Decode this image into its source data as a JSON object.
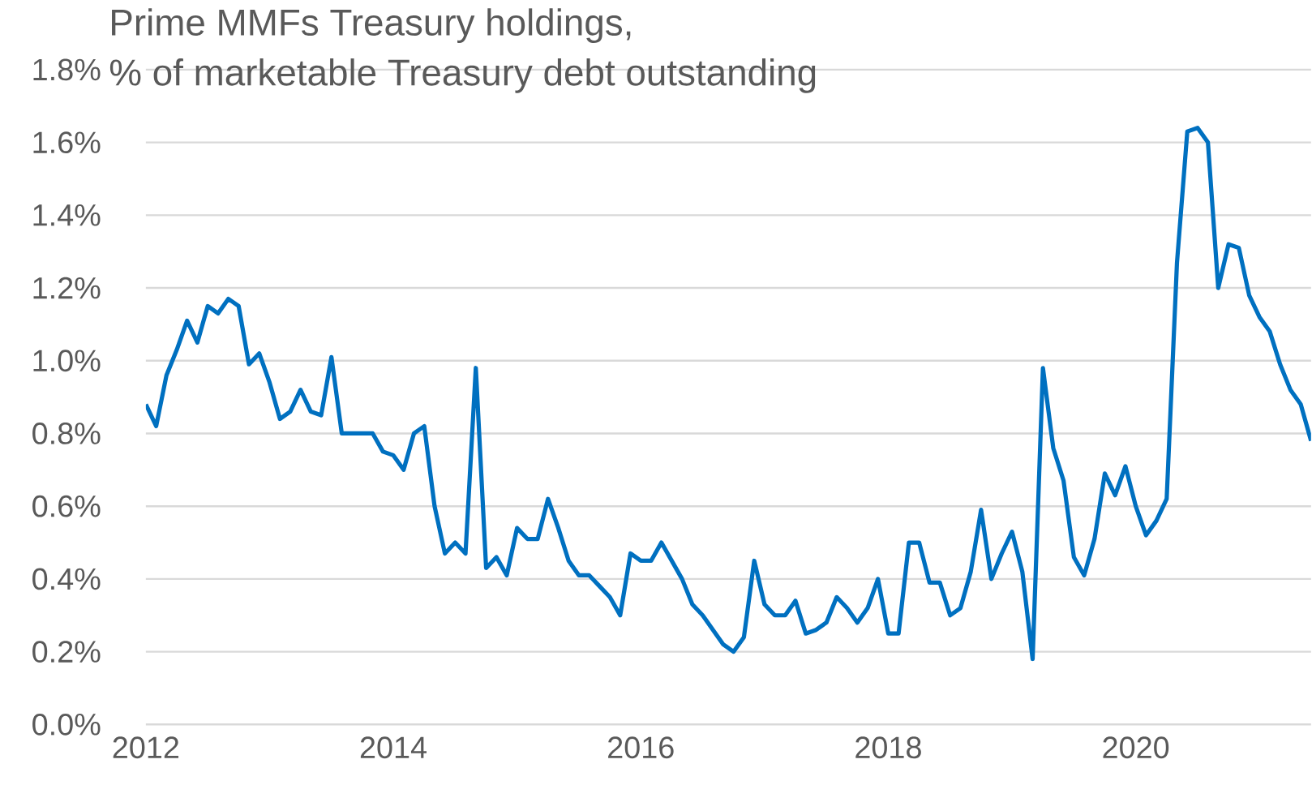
{
  "chart_data": {
    "type": "line",
    "title": "Prime MMFs Treasury holdings,",
    "subtitle": "% of marketable Treasury debt outstanding",
    "x": [
      "2012-01",
      "2012-02",
      "2012-03",
      "2012-04",
      "2012-05",
      "2012-06",
      "2012-07",
      "2012-08",
      "2012-09",
      "2012-10",
      "2012-11",
      "2012-12",
      "2013-01",
      "2013-02",
      "2013-03",
      "2013-04",
      "2013-05",
      "2013-06",
      "2013-07",
      "2013-08",
      "2013-09",
      "2013-10",
      "2013-11",
      "2013-12",
      "2014-01",
      "2014-02",
      "2014-03",
      "2014-04",
      "2014-05",
      "2014-06",
      "2014-07",
      "2014-08",
      "2014-09",
      "2014-10",
      "2014-11",
      "2014-12",
      "2015-01",
      "2015-02",
      "2015-03",
      "2015-04",
      "2015-05",
      "2015-06",
      "2015-07",
      "2015-08",
      "2015-09",
      "2015-10",
      "2015-11",
      "2015-12",
      "2016-01",
      "2016-02",
      "2016-03",
      "2016-04",
      "2016-05",
      "2016-06",
      "2016-07",
      "2016-08",
      "2016-09",
      "2016-10",
      "2016-11",
      "2016-12",
      "2017-01",
      "2017-02",
      "2017-03",
      "2017-04",
      "2017-05",
      "2017-06",
      "2017-07",
      "2017-08",
      "2017-09",
      "2017-10",
      "2017-11",
      "2017-12",
      "2018-01",
      "2018-02",
      "2018-03",
      "2018-04",
      "2018-05",
      "2018-06",
      "2018-07",
      "2018-08",
      "2018-09",
      "2018-10",
      "2018-11",
      "2018-12",
      "2019-01",
      "2019-02",
      "2019-03",
      "2019-04",
      "2019-05",
      "2019-06",
      "2019-07",
      "2019-08",
      "2019-09",
      "2019-10",
      "2019-11",
      "2019-12",
      "2020-01",
      "2020-02",
      "2020-03",
      "2020-04",
      "2020-05",
      "2020-06",
      "2020-07",
      "2020-08",
      "2020-09",
      "2020-10",
      "2020-11",
      "2020-12",
      "2021-01",
      "2021-02",
      "2021-03",
      "2021-04",
      "2021-05",
      "2021-06"
    ],
    "series": [
      {
        "color": "#0070c0",
        "values": [
          0.88,
          0.82,
          0.96,
          1.03,
          1.11,
          1.05,
          1.15,
          1.13,
          1.17,
          1.15,
          0.99,
          1.02,
          0.94,
          0.84,
          0.86,
          0.92,
          0.86,
          0.85,
          1.01,
          0.8,
          0.8,
          0.8,
          0.8,
          0.75,
          0.74,
          0.7,
          0.8,
          0.82,
          0.6,
          0.47,
          0.5,
          0.47,
          0.98,
          0.43,
          0.46,
          0.41,
          0.54,
          0.51,
          0.51,
          0.62,
          0.54,
          0.45,
          0.41,
          0.41,
          0.38,
          0.35,
          0.3,
          0.47,
          0.45,
          0.45,
          0.5,
          0.45,
          0.4,
          0.33,
          0.3,
          0.26,
          0.22,
          0.2,
          0.24,
          0.45,
          0.33,
          0.3,
          0.3,
          0.34,
          0.25,
          0.26,
          0.28,
          0.35,
          0.32,
          0.28,
          0.32,
          0.4,
          0.25,
          0.25,
          0.5,
          0.5,
          0.39,
          0.39,
          0.3,
          0.32,
          0.42,
          0.59,
          0.4,
          0.47,
          0.53,
          0.42,
          0.18,
          0.98,
          0.76,
          0.67,
          0.46,
          0.41,
          0.51,
          0.69,
          0.63,
          0.71,
          0.6,
          0.52,
          0.56,
          0.62,
          1.27,
          1.63,
          1.64,
          1.6,
          1.2,
          1.32,
          1.31,
          1.18,
          1.12,
          1.08,
          0.99,
          0.92,
          0.88,
          0.78
        ]
      }
    ],
    "xlim": [
      "2012-01",
      "2021-06"
    ],
    "xticks": [
      {
        "value": "2012",
        "label": "2012"
      },
      {
        "value": "2014",
        "label": "2014"
      },
      {
        "value": "2016",
        "label": "2016"
      },
      {
        "value": "2018",
        "label": "2018"
      },
      {
        "value": "2020",
        "label": "2020"
      }
    ],
    "ylim": [
      0,
      1.8
    ],
    "yticks": [
      {
        "value": 0,
        "label": "0.0%"
      },
      {
        "value": 0.2,
        "label": "0.2%"
      },
      {
        "value": 0.4,
        "label": "0.4%"
      },
      {
        "value": 0.6,
        "label": "0.6%"
      },
      {
        "value": 0.8,
        "label": "0.8%"
      },
      {
        "value": 1.0,
        "label": "1.0%"
      },
      {
        "value": 1.2,
        "label": "1.2%"
      },
      {
        "value": 1.4,
        "label": "1.4%"
      },
      {
        "value": 1.6,
        "label": "1.6%"
      },
      {
        "value": 1.8,
        "label": "1.8%"
      }
    ],
    "grid": "y",
    "marker": "none",
    "line_style": "solid"
  }
}
